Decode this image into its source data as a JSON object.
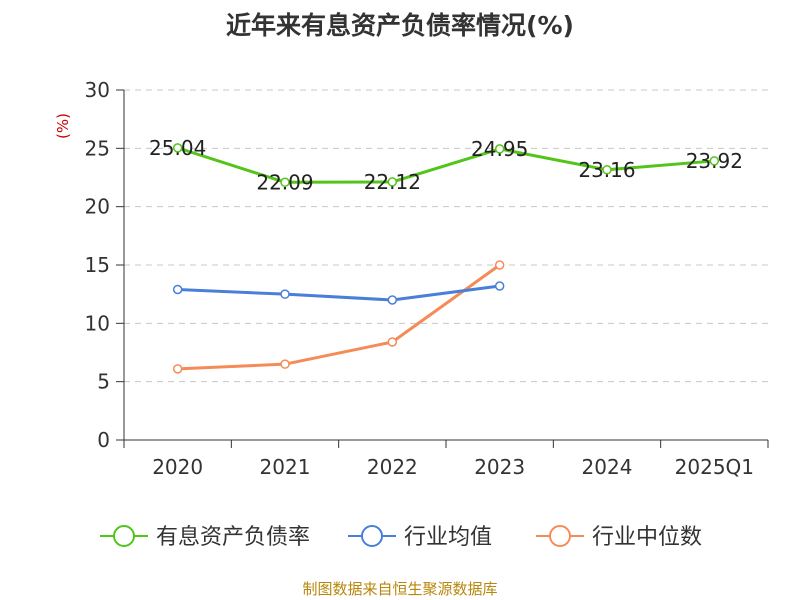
{
  "chart_data": {
    "type": "line",
    "title": "近年来有息资产负债率情况(%)",
    "ylabel": "(%)",
    "categories": [
      "2020",
      "2021",
      "2022",
      "2023",
      "2024",
      "2025Q1"
    ],
    "yticks": [
      "0",
      "5",
      "10",
      "15",
      "20",
      "25",
      "30"
    ],
    "ylim": [
      0,
      30
    ],
    "grid": true,
    "legend_position": "bottom",
    "series": [
      {
        "name": "有息资产负债率",
        "color": "#52c41a",
        "values": [
          25.04,
          22.09,
          22.12,
          24.95,
          23.16,
          23.92
        ],
        "labels": [
          "25.04",
          "22.09",
          "22.12",
          "24.95",
          "23.16",
          "23.92"
        ]
      },
      {
        "name": "行业均值",
        "color": "#4a7fd9",
        "values": [
          12.9,
          12.5,
          12.0,
          13.2,
          null,
          null
        ]
      },
      {
        "name": "行业中位数",
        "color": "#f58b57",
        "values": [
          6.1,
          6.5,
          8.4,
          15.0,
          null,
          null
        ]
      }
    ]
  },
  "source": "制图数据来自恒生聚源数据库"
}
